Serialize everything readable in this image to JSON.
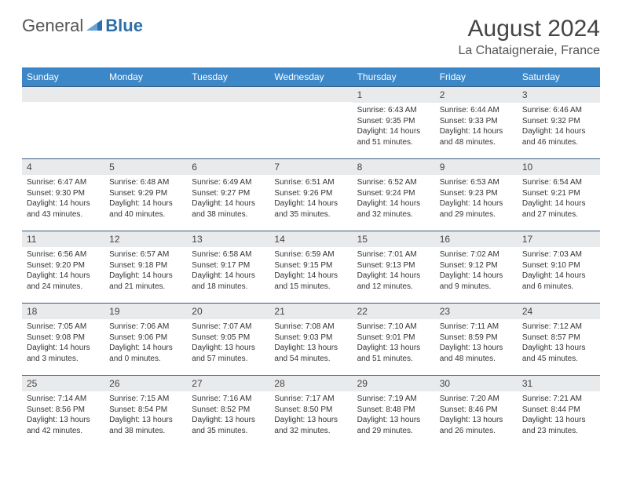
{
  "logo": {
    "general": "General",
    "blue": "Blue"
  },
  "title": "August 2024",
  "location": "La Chataigneraie, France",
  "colors": {
    "header_bg": "#3b87c8",
    "header_text": "#ffffff",
    "daynum_bg": "#e9eaec",
    "daynum_border": "#3a5a7a",
    "logo_blue": "#2f6fa8"
  },
  "daynames": [
    "Sunday",
    "Monday",
    "Tuesday",
    "Wednesday",
    "Thursday",
    "Friday",
    "Saturday"
  ],
  "weeks": [
    [
      {
        "n": "",
        "sr": "",
        "ss": "",
        "dl": ""
      },
      {
        "n": "",
        "sr": "",
        "ss": "",
        "dl": ""
      },
      {
        "n": "",
        "sr": "",
        "ss": "",
        "dl": ""
      },
      {
        "n": "",
        "sr": "",
        "ss": "",
        "dl": ""
      },
      {
        "n": "1",
        "sr": "Sunrise: 6:43 AM",
        "ss": "Sunset: 9:35 PM",
        "dl": "Daylight: 14 hours and 51 minutes."
      },
      {
        "n": "2",
        "sr": "Sunrise: 6:44 AM",
        "ss": "Sunset: 9:33 PM",
        "dl": "Daylight: 14 hours and 48 minutes."
      },
      {
        "n": "3",
        "sr": "Sunrise: 6:46 AM",
        "ss": "Sunset: 9:32 PM",
        "dl": "Daylight: 14 hours and 46 minutes."
      }
    ],
    [
      {
        "n": "4",
        "sr": "Sunrise: 6:47 AM",
        "ss": "Sunset: 9:30 PM",
        "dl": "Daylight: 14 hours and 43 minutes."
      },
      {
        "n": "5",
        "sr": "Sunrise: 6:48 AM",
        "ss": "Sunset: 9:29 PM",
        "dl": "Daylight: 14 hours and 40 minutes."
      },
      {
        "n": "6",
        "sr": "Sunrise: 6:49 AM",
        "ss": "Sunset: 9:27 PM",
        "dl": "Daylight: 14 hours and 38 minutes."
      },
      {
        "n": "7",
        "sr": "Sunrise: 6:51 AM",
        "ss": "Sunset: 9:26 PM",
        "dl": "Daylight: 14 hours and 35 minutes."
      },
      {
        "n": "8",
        "sr": "Sunrise: 6:52 AM",
        "ss": "Sunset: 9:24 PM",
        "dl": "Daylight: 14 hours and 32 minutes."
      },
      {
        "n": "9",
        "sr": "Sunrise: 6:53 AM",
        "ss": "Sunset: 9:23 PM",
        "dl": "Daylight: 14 hours and 29 minutes."
      },
      {
        "n": "10",
        "sr": "Sunrise: 6:54 AM",
        "ss": "Sunset: 9:21 PM",
        "dl": "Daylight: 14 hours and 27 minutes."
      }
    ],
    [
      {
        "n": "11",
        "sr": "Sunrise: 6:56 AM",
        "ss": "Sunset: 9:20 PM",
        "dl": "Daylight: 14 hours and 24 minutes."
      },
      {
        "n": "12",
        "sr": "Sunrise: 6:57 AM",
        "ss": "Sunset: 9:18 PM",
        "dl": "Daylight: 14 hours and 21 minutes."
      },
      {
        "n": "13",
        "sr": "Sunrise: 6:58 AM",
        "ss": "Sunset: 9:17 PM",
        "dl": "Daylight: 14 hours and 18 minutes."
      },
      {
        "n": "14",
        "sr": "Sunrise: 6:59 AM",
        "ss": "Sunset: 9:15 PM",
        "dl": "Daylight: 14 hours and 15 minutes."
      },
      {
        "n": "15",
        "sr": "Sunrise: 7:01 AM",
        "ss": "Sunset: 9:13 PM",
        "dl": "Daylight: 14 hours and 12 minutes."
      },
      {
        "n": "16",
        "sr": "Sunrise: 7:02 AM",
        "ss": "Sunset: 9:12 PM",
        "dl": "Daylight: 14 hours and 9 minutes."
      },
      {
        "n": "17",
        "sr": "Sunrise: 7:03 AM",
        "ss": "Sunset: 9:10 PM",
        "dl": "Daylight: 14 hours and 6 minutes."
      }
    ],
    [
      {
        "n": "18",
        "sr": "Sunrise: 7:05 AM",
        "ss": "Sunset: 9:08 PM",
        "dl": "Daylight: 14 hours and 3 minutes."
      },
      {
        "n": "19",
        "sr": "Sunrise: 7:06 AM",
        "ss": "Sunset: 9:06 PM",
        "dl": "Daylight: 14 hours and 0 minutes."
      },
      {
        "n": "20",
        "sr": "Sunrise: 7:07 AM",
        "ss": "Sunset: 9:05 PM",
        "dl": "Daylight: 13 hours and 57 minutes."
      },
      {
        "n": "21",
        "sr": "Sunrise: 7:08 AM",
        "ss": "Sunset: 9:03 PM",
        "dl": "Daylight: 13 hours and 54 minutes."
      },
      {
        "n": "22",
        "sr": "Sunrise: 7:10 AM",
        "ss": "Sunset: 9:01 PM",
        "dl": "Daylight: 13 hours and 51 minutes."
      },
      {
        "n": "23",
        "sr": "Sunrise: 7:11 AM",
        "ss": "Sunset: 8:59 PM",
        "dl": "Daylight: 13 hours and 48 minutes."
      },
      {
        "n": "24",
        "sr": "Sunrise: 7:12 AM",
        "ss": "Sunset: 8:57 PM",
        "dl": "Daylight: 13 hours and 45 minutes."
      }
    ],
    [
      {
        "n": "25",
        "sr": "Sunrise: 7:14 AM",
        "ss": "Sunset: 8:56 PM",
        "dl": "Daylight: 13 hours and 42 minutes."
      },
      {
        "n": "26",
        "sr": "Sunrise: 7:15 AM",
        "ss": "Sunset: 8:54 PM",
        "dl": "Daylight: 13 hours and 38 minutes."
      },
      {
        "n": "27",
        "sr": "Sunrise: 7:16 AM",
        "ss": "Sunset: 8:52 PM",
        "dl": "Daylight: 13 hours and 35 minutes."
      },
      {
        "n": "28",
        "sr": "Sunrise: 7:17 AM",
        "ss": "Sunset: 8:50 PM",
        "dl": "Daylight: 13 hours and 32 minutes."
      },
      {
        "n": "29",
        "sr": "Sunrise: 7:19 AM",
        "ss": "Sunset: 8:48 PM",
        "dl": "Daylight: 13 hours and 29 minutes."
      },
      {
        "n": "30",
        "sr": "Sunrise: 7:20 AM",
        "ss": "Sunset: 8:46 PM",
        "dl": "Daylight: 13 hours and 26 minutes."
      },
      {
        "n": "31",
        "sr": "Sunrise: 7:21 AM",
        "ss": "Sunset: 8:44 PM",
        "dl": "Daylight: 13 hours and 23 minutes."
      }
    ]
  ]
}
